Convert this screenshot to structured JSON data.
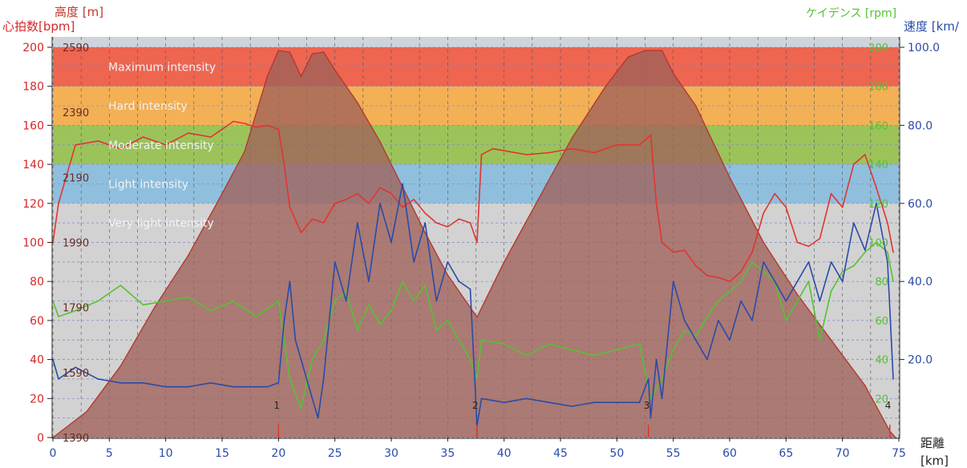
{
  "chart_data": {
    "type": "line",
    "axes": {
      "heart_rate_label": "心拍数[bpm]",
      "altitude_label": "高度 [m]",
      "cadence_label": "ケイデンス [rpm]",
      "speed_label": "速度 [km/",
      "x_label_line1": "距離",
      "x_label_line2": "[km]",
      "heart_rate_ylim": [
        0,
        200
      ],
      "heart_rate_ticks": [
        "0",
        "20",
        "40",
        "60",
        "80",
        "100",
        "120",
        "140",
        "160",
        "180",
        "200"
      ],
      "altitude_ylim": [
        1390,
        2590
      ],
      "altitude_ticks": [
        "1390",
        "1590",
        "1790",
        "1990",
        "2190",
        "2390",
        "2590"
      ],
      "cadence_ylim": [
        0,
        200
      ],
      "cadence_ticks": [
        "20",
        "40",
        "60",
        "80",
        "100",
        "120",
        "140",
        "160",
        "180",
        "200"
      ],
      "speed_ylim": [
        0,
        100
      ],
      "speed_ticks": [
        "20.0",
        "40.0",
        "60.0",
        "80.0",
        "100.0"
      ],
      "x_range": [
        0,
        75
      ],
      "x_ticks": [
        "0",
        "5",
        "10",
        "15",
        "20",
        "25",
        "30",
        "35",
        "40",
        "45",
        "50",
        "55",
        "60",
        "65",
        "70",
        "75"
      ]
    },
    "zones": [
      {
        "name": "Maximum intensity",
        "from": 180,
        "to": 200,
        "color": "#ee6550"
      },
      {
        "name": "Hard intensity",
        "from": 160,
        "to": 180,
        "color": "#f3b055"
      },
      {
        "name": "Moderate intensity",
        "from": 140,
        "to": 160,
        "color": "#9cc35a"
      },
      {
        "name": "Light intensity",
        "from": 120,
        "to": 140,
        "color": "#8fbfdd"
      },
      {
        "name": "Very light intensity",
        "from": 0,
        "to": 120,
        "color": "#d2d2d2"
      }
    ],
    "laps": [
      {
        "label": "1",
        "x": 20
      },
      {
        "label": "2",
        "x": 37.6
      },
      {
        "label": "3",
        "x": 52.8
      },
      {
        "label": "4",
        "x": 74.2
      }
    ],
    "series": [
      {
        "name": "高度",
        "unit": "m",
        "color": "#a0615a",
        "x": [
          0,
          3,
          6,
          9,
          12,
          15,
          17,
          19,
          20,
          21,
          22,
          23,
          24,
          25,
          27,
          29,
          31,
          33,
          35,
          37.6,
          40,
          43,
          46,
          49,
          51,
          52.5,
          54,
          55,
          57,
          60,
          63,
          66,
          69,
          72,
          74.2,
          74.7
        ],
        "y": [
          1390,
          1470,
          1610,
          1790,
          1950,
          2140,
          2270,
          2500,
          2580,
          2575,
          2500,
          2570,
          2575,
          2520,
          2420,
          2300,
          2160,
          2020,
          1890,
          1760,
          1930,
          2120,
          2310,
          2470,
          2560,
          2580,
          2580,
          2510,
          2410,
          2190,
          1990,
          1830,
          1690,
          1550,
          1410,
          1390
        ]
      },
      {
        "name": "心拍数",
        "unit": "bpm",
        "color": "#e03530",
        "x": [
          0,
          0.5,
          2,
          4,
          6,
          8,
          10,
          12,
          14,
          15,
          16,
          17,
          18,
          19,
          20,
          20.5,
          21,
          22,
          23,
          24,
          25,
          26,
          27,
          28,
          29,
          30,
          31,
          32,
          33,
          34,
          35,
          36,
          37,
          37.6,
          38,
          39,
          40,
          42,
          44,
          46,
          48,
          50,
          52,
          53,
          53.5,
          54,
          55,
          56,
          57,
          58,
          59,
          60,
          61,
          62,
          63,
          64,
          65,
          66,
          67,
          68,
          69,
          70,
          71,
          72,
          73,
          74,
          74.5
        ],
        "y": [
          100,
          120,
          150,
          152,
          148,
          154,
          150,
          156,
          154,
          158,
          162,
          161,
          159,
          160,
          158,
          140,
          118,
          105,
          112,
          110,
          120,
          122,
          125,
          120,
          128,
          125,
          118,
          122,
          115,
          110,
          108,
          112,
          110,
          100,
          145,
          148,
          147,
          145,
          146,
          148,
          146,
          150,
          150,
          155,
          120,
          100,
          95,
          96,
          88,
          83,
          82,
          80,
          85,
          95,
          115,
          125,
          118,
          100,
          98,
          102,
          125,
          118,
          140,
          145,
          128,
          110,
          95
        ]
      },
      {
        "name": "ケイデンス",
        "unit": "rpm",
        "color": "#55c233",
        "x": [
          0,
          0.5,
          2,
          4,
          6,
          8,
          10,
          12,
          14,
          16,
          18,
          20,
          21,
          22,
          23,
          24,
          25,
          26,
          27,
          28,
          29,
          30,
          31,
          32,
          33,
          34,
          35,
          36,
          37,
          37.6,
          38,
          40,
          42,
          44,
          46,
          48,
          50,
          52,
          53,
          54,
          55,
          56,
          57,
          58,
          59,
          60,
          61,
          62,
          63,
          64,
          65,
          66,
          67,
          68,
          69,
          70,
          71,
          72,
          73,
          74,
          74.5
        ],
        "y": [
          70,
          62,
          65,
          70,
          78,
          68,
          70,
          72,
          65,
          70,
          62,
          70,
          30,
          15,
          40,
          50,
          70,
          75,
          55,
          68,
          58,
          65,
          80,
          70,
          78,
          55,
          60,
          50,
          40,
          30,
          50,
          48,
          42,
          48,
          45,
          42,
          45,
          48,
          20,
          30,
          45,
          55,
          52,
          62,
          70,
          75,
          80,
          90,
          85,
          80,
          60,
          70,
          80,
          50,
          75,
          85,
          88,
          95,
          100,
          95,
          80
        ]
      },
      {
        "name": "速度",
        "unit": "km/h",
        "color": "#2a4ba8",
        "x": [
          0,
          0.5,
          2,
          4,
          6,
          8,
          10,
          12,
          14,
          16,
          18,
          19,
          20,
          20.5,
          21,
          21.5,
          22,
          23,
          23.5,
          24,
          25,
          26,
          27,
          28,
          29,
          30,
          31,
          32,
          33,
          34,
          35,
          36,
          37,
          37.6,
          38,
          40,
          42,
          44,
          46,
          48,
          50,
          52,
          52.8,
          53,
          53.5,
          54,
          55,
          56,
          57,
          58,
          59,
          60,
          61,
          62,
          63,
          64,
          65,
          66,
          67,
          68,
          69,
          70,
          71,
          72,
          73,
          74,
          74.5
        ],
        "y": [
          20,
          15,
          18,
          15,
          14,
          14,
          13,
          13,
          14,
          13,
          13,
          13,
          14,
          30,
          40,
          25,
          20,
          10,
          5,
          15,
          45,
          35,
          55,
          40,
          60,
          50,
          65,
          45,
          55,
          35,
          45,
          40,
          38,
          3,
          10,
          9,
          10,
          9,
          8,
          9,
          9,
          9,
          15,
          5,
          20,
          10,
          40,
          30,
          25,
          20,
          30,
          25,
          35,
          30,
          45,
          40,
          35,
          40,
          45,
          35,
          45,
          40,
          55,
          48,
          60,
          45,
          15
        ]
      }
    ]
  }
}
